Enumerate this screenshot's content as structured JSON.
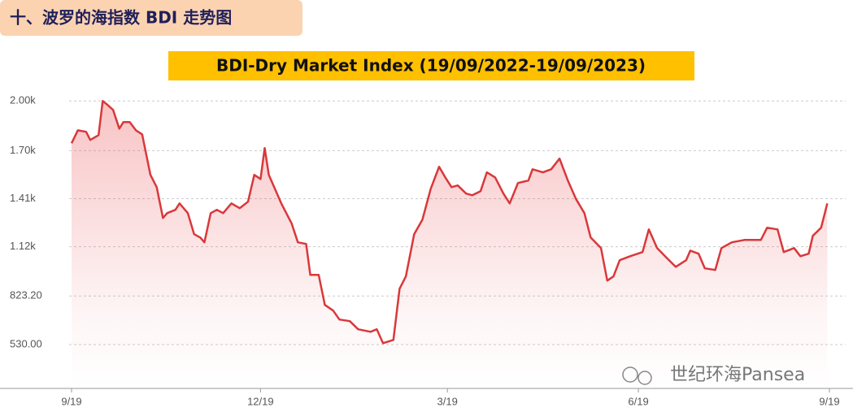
{
  "header": "十、波罗的海指数 BDI 走势图",
  "watermark": "世纪环海Pansea",
  "chart_data": {
    "type": "area",
    "title": "BDI-Dry Market Index (19/09/2022-19/09/2023)",
    "color": "#d9383a",
    "grid": true,
    "xlim": [
      "2022-09-19",
      "2023-09-19"
    ],
    "xticks": [
      {
        "value": "2022-09-19",
        "label": "9/19"
      },
      {
        "value": "2022-12-19",
        "label": "12/19"
      },
      {
        "value": "2023-03-19",
        "label": "3/19"
      },
      {
        "value": "2023-06-19",
        "label": "6/19"
      },
      {
        "value": "2023-09-19",
        "label": "9/19"
      }
    ],
    "ylim": [
      265,
      2070
    ],
    "yticks": [
      {
        "value": 2000,
        "label": "2.00k"
      },
      {
        "value": 1700,
        "label": "1.70k"
      },
      {
        "value": 1410,
        "label": "1.41k"
      },
      {
        "value": 1120,
        "label": "1.12k"
      },
      {
        "value": 823.2,
        "label": "823.20"
      },
      {
        "value": 530,
        "label": "530.00"
      }
    ],
    "x": [
      "2022-09-19",
      "2022-09-22",
      "2022-09-26",
      "2022-09-28",
      "2022-10-02",
      "2022-10-04",
      "2022-10-06",
      "2022-10-09",
      "2022-10-12",
      "2022-10-14",
      "2022-10-17",
      "2022-10-20",
      "2022-10-23",
      "2022-10-27",
      "2022-10-30",
      "2022-11-02",
      "2022-11-04",
      "2022-11-08",
      "2022-11-10",
      "2022-11-14",
      "2022-11-17",
      "2022-11-20",
      "2022-11-22",
      "2022-11-25",
      "2022-11-28",
      "2022-12-01",
      "2022-12-05",
      "2022-12-09",
      "2022-12-13",
      "2022-12-16",
      "2022-12-19",
      "2022-12-21",
      "2022-12-23",
      "2022-12-29",
      "2023-01-03",
      "2023-01-06",
      "2023-01-10",
      "2023-01-12",
      "2023-01-16",
      "2023-01-19",
      "2023-01-23",
      "2023-01-26",
      "2023-01-31",
      "2023-02-04",
      "2023-02-10",
      "2023-02-13",
      "2023-02-16",
      "2023-02-21",
      "2023-02-24",
      "2023-02-27",
      "2023-03-03",
      "2023-03-07",
      "2023-03-11",
      "2023-03-15",
      "2023-03-18",
      "2023-03-21",
      "2023-03-24",
      "2023-03-28",
      "2023-03-31",
      "2023-04-04",
      "2023-04-07",
      "2023-04-11",
      "2023-04-15",
      "2023-04-18",
      "2023-04-22",
      "2023-04-27",
      "2023-04-29",
      "2023-05-04",
      "2023-05-08",
      "2023-05-12",
      "2023-05-16",
      "2023-05-20",
      "2023-05-24",
      "2023-05-27",
      "2023-06-01",
      "2023-06-04",
      "2023-06-07",
      "2023-06-10",
      "2023-06-15",
      "2023-06-21",
      "2023-06-24",
      "2023-06-28",
      "2023-07-03",
      "2023-07-07",
      "2023-07-12",
      "2023-07-14",
      "2023-07-18",
      "2023-07-21",
      "2023-07-26",
      "2023-07-29",
      "2023-08-03",
      "2023-08-09",
      "2023-08-17",
      "2023-08-20",
      "2023-08-25",
      "2023-08-28",
      "2023-09-02",
      "2023-09-05",
      "2023-09-09",
      "2023-09-11",
      "2023-09-15",
      "2023-09-18"
    ],
    "values": [
      1745,
      1823,
      1814,
      1765,
      1794,
      2000,
      1980,
      1946,
      1833,
      1873,
      1873,
      1823,
      1799,
      1554,
      1480,
      1294,
      1323,
      1343,
      1382,
      1323,
      1196,
      1176,
      1147,
      1323,
      1343,
      1323,
      1382,
      1353,
      1392,
      1554,
      1529,
      1716,
      1554,
      1382,
      1260,
      1147,
      1137,
      950,
      950,
      769,
      735,
      681,
      671,
      622,
      607,
      622,
      538,
      558,
      867,
      941,
      1196,
      1284,
      1470,
      1603,
      1539,
      1480,
      1490,
      1441,
      1431,
      1456,
      1569,
      1539,
      1441,
      1382,
      1505,
      1520,
      1588,
      1569,
      1588,
      1652,
      1520,
      1407,
      1323,
      1176,
      1112,
      916,
      941,
      1039,
      1063,
      1088,
      1225,
      1112,
      1049,
      999,
      1039,
      1097,
      1078,
      990,
      980,
      1112,
      1147,
      1161,
      1161,
      1235,
      1225,
      1088,
      1112,
      1063,
      1078,
      1186,
      1235,
      1382
    ]
  }
}
